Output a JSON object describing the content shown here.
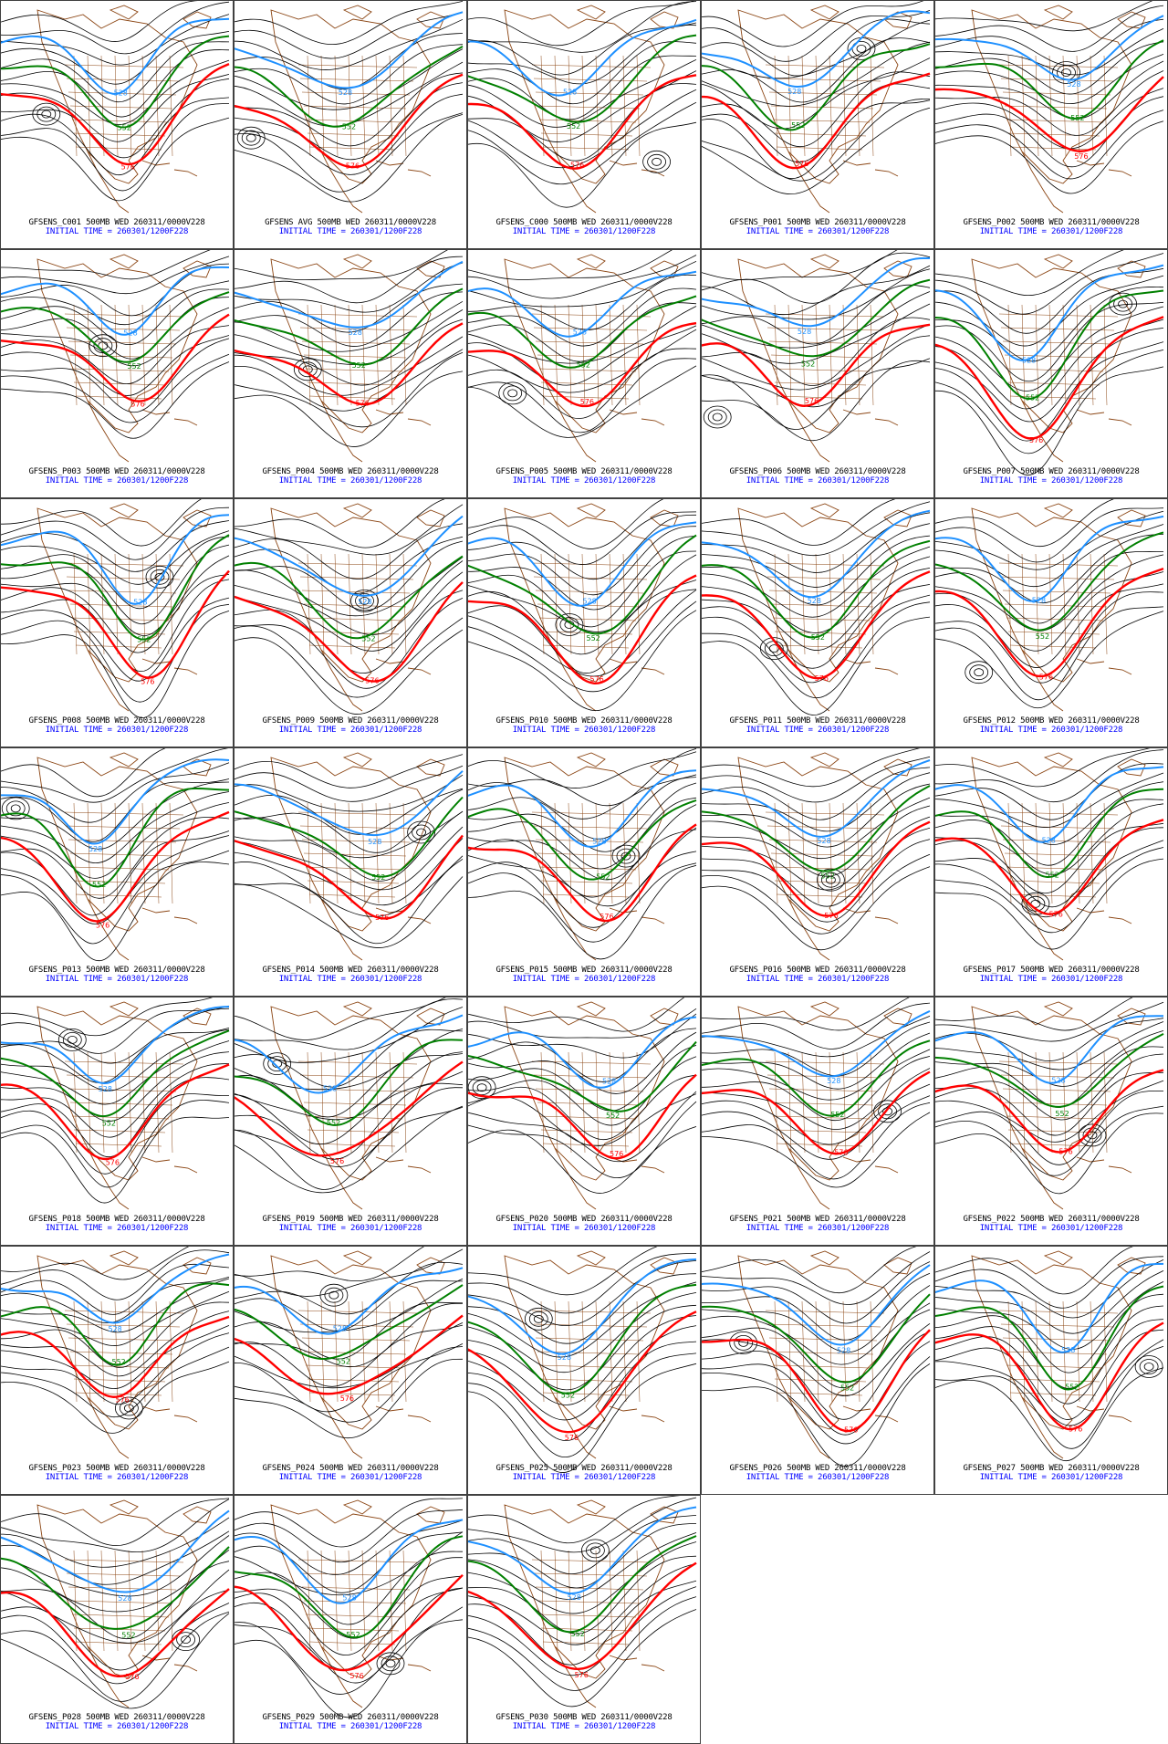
{
  "colors": {
    "contour": "#000000",
    "red_576": "#ff0000",
    "green_552": "#008000",
    "blue_528": "#1e90ff",
    "coastline": "#8b4513",
    "caption_line1": "#000000",
    "caption_line2": "#0000ff",
    "panel_border": "#404040"
  },
  "map": {
    "contour_labels": {
      "red": "576",
      "green": "552",
      "blue": "528"
    }
  },
  "panels": [
    {
      "id": "C001",
      "caption": "GFSENS_C001 500MB WED 260311/0000V228",
      "init": "INITIAL TIME = 260301/1200F228"
    },
    {
      "id": "AVG",
      "caption": "GFSENS AVG 500MB WED 260311/0000V228",
      "init": "INITIAL TIME = 260301/1200F228"
    },
    {
      "id": "C000",
      "caption": "GFSENS_C000 500MB WED 260311/0000V228",
      "init": "INITIAL TIME = 260301/1200F228"
    },
    {
      "id": "P001",
      "caption": "GFSENS_P001 500MB WED 260311/0000V228",
      "init": "INITIAL TIME = 260301/1200F228"
    },
    {
      "id": "P002",
      "caption": "GFSENS_P002 500MB WED 260311/0000V228",
      "init": "INITIAL TIME = 260301/1200F228"
    },
    {
      "id": "P003",
      "caption": "GFSENS_P003 500MB WED 260311/0000V228",
      "init": "INITIAL TIME = 260301/1200F228"
    },
    {
      "id": "P004",
      "caption": "GFSENS_P004 500MB WED 260311/0000V228",
      "init": "INITIAL TIME = 260301/1200F228"
    },
    {
      "id": "P005",
      "caption": "GFSENS_P005 500MB WED 260311/0000V228",
      "init": "INITIAL TIME = 260301/1200F228"
    },
    {
      "id": "P006",
      "caption": "GFSENS_P006 500MB WED 260311/0000V228",
      "init": "INITIAL TIME = 260301/1200F228"
    },
    {
      "id": "P007",
      "caption": "GFSENS_P007 500MB WED 260311/0000V228",
      "init": "INITIAL TIME = 260301/1200F228"
    },
    {
      "id": "P008",
      "caption": "GFSENS_P008 500MB WED 260311/0000V228",
      "init": "INITIAL TIME = 260301/1200F228"
    },
    {
      "id": "P009",
      "caption": "GFSENS_P009 500MB WED 260311/0000V228",
      "init": "INITIAL TIME = 260301/1200F228"
    },
    {
      "id": "P010",
      "caption": "GFSENS_P010 500MB WED 260311/0000V228",
      "init": "INITIAL TIME = 260301/1200F228"
    },
    {
      "id": "P011",
      "caption": "GFSENS_P011 500MB WED 260311/0000V228",
      "init": "INITIAL TIME = 260301/1200F228"
    },
    {
      "id": "P012",
      "caption": "GFSENS_P012 500MB WED 260311/0000V228",
      "init": "INITIAL TIME = 260301/1200F228"
    },
    {
      "id": "P013",
      "caption": "GFSENS_P013 500MB WED 260311/0000V228",
      "init": "INITIAL TIME = 260301/1200F228"
    },
    {
      "id": "P014",
      "caption": "GFSENS_P014 500MB WED 260311/0000V228",
      "init": "INITIAL TIME = 260301/1200F228"
    },
    {
      "id": "P015",
      "caption": "GFSENS_P015 500MB WED 260311/0000V228",
      "init": "INITIAL TIME = 260301/1200F228"
    },
    {
      "id": "P016",
      "caption": "GFSENS_P016 500MB WED 260311/0000V228",
      "init": "INITIAL TIME = 260301/1200F228"
    },
    {
      "id": "P017",
      "caption": "GFSENS_P017 500MB WED 260311/0000V228",
      "init": "INITIAL TIME = 260301/1200F228"
    },
    {
      "id": "P018",
      "caption": "GFSENS_P018 500MB WED 260311/0000V228",
      "init": "INITIAL TIME = 260301/1200F228"
    },
    {
      "id": "P019",
      "caption": "GFSENS_P019 500MB WED 260311/0000V228",
      "init": "INITIAL TIME = 260301/1200F228"
    },
    {
      "id": "P020",
      "caption": "GFSENS_P020 500MB WED 260311/0000V228",
      "init": "INITIAL TIME = 260301/1200F228"
    },
    {
      "id": "P021",
      "caption": "GFSENS_P021 500MB WED 260311/0000V228",
      "init": "INITIAL TIME = 260301/1200F228"
    },
    {
      "id": "P022",
      "caption": "GFSENS_P022 500MB WED 260311/0000V228",
      "init": "INITIAL TIME = 260301/1200F228"
    },
    {
      "id": "P023",
      "caption": "GFSENS_P023 500MB WED 260311/0000V228",
      "init": "INITIAL TIME = 260301/1200F228"
    },
    {
      "id": "P024",
      "caption": "GFSENS_P024 500MB WED 260311/0000V228",
      "init": "INITIAL TIME = 260301/1200F228"
    },
    {
      "id": "P025",
      "caption": "GFSENS_P025 500MB WED 260311/0000V228",
      "init": "INITIAL TIME = 260301/1200F228"
    },
    {
      "id": "P026",
      "caption": "GFSENS_P026 500MB WED 260311/0000V228",
      "init": "INITIAL TIME = 260301/1200F228"
    },
    {
      "id": "P027",
      "caption": "GFSENS_P027 500MB WED 260311/0000V228",
      "init": "INITIAL TIME = 260301/1200F228"
    },
    {
      "id": "P028",
      "caption": "GFSENS_P028 500MB WED 260311/0000V228",
      "init": "INITIAL TIME = 260301/1200F228"
    },
    {
      "id": "P029",
      "caption": "GFSENS_P029 500MB WED 260311/0000V228",
      "init": "INITIAL TIME = 260301/1200F228"
    },
    {
      "id": "P030",
      "caption": "GFSENS_P030 500MB WED 260311/0000V228",
      "init": "INITIAL TIME = 260301/1200F228"
    }
  ]
}
